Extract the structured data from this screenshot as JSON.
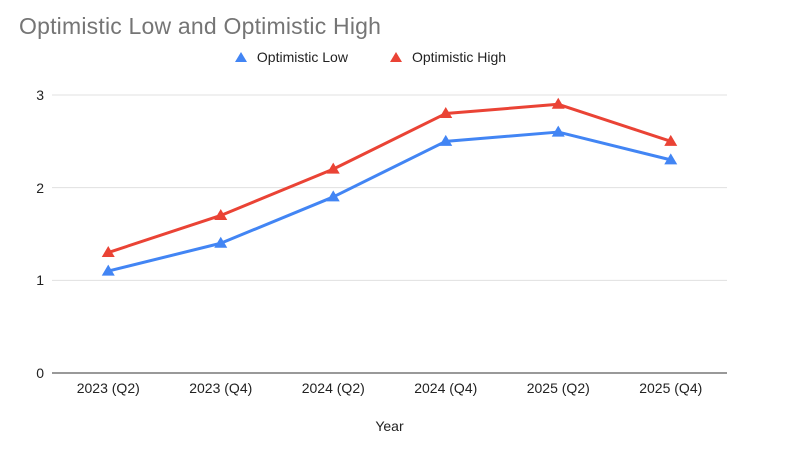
{
  "title": "Optimistic Low and Optimistic High",
  "chart_data": {
    "type": "line",
    "title": "Optimistic Low and Optimistic High",
    "categories": [
      "2023 (Q2)",
      "2023 (Q4)",
      "2024 (Q2)",
      "2024 (Q4)",
      "2025 (Q2)",
      "2025 (Q4)"
    ],
    "series": [
      {
        "name": "Optimistic Low",
        "color": "#4285F4",
        "marker": "triangle",
        "values": [
          1.1,
          1.4,
          1.9,
          2.5,
          2.6,
          2.3
        ]
      },
      {
        "name": "Optimistic High",
        "color": "#EA4335",
        "marker": "triangle",
        "values": [
          1.3,
          1.7,
          2.2,
          2.8,
          2.9,
          2.5
        ]
      }
    ],
    "xlabel": "Year",
    "ylabel": "",
    "ylim": [
      0,
      3
    ],
    "yticks": [
      0,
      1,
      2,
      3
    ],
    "grid": true,
    "legend_position": "top"
  },
  "colors": {
    "title_text": "#757575",
    "axis_text": "#222222",
    "gridline": "#E0E0E0",
    "axis_line": "#333333",
    "background": "#FFFFFF"
  }
}
